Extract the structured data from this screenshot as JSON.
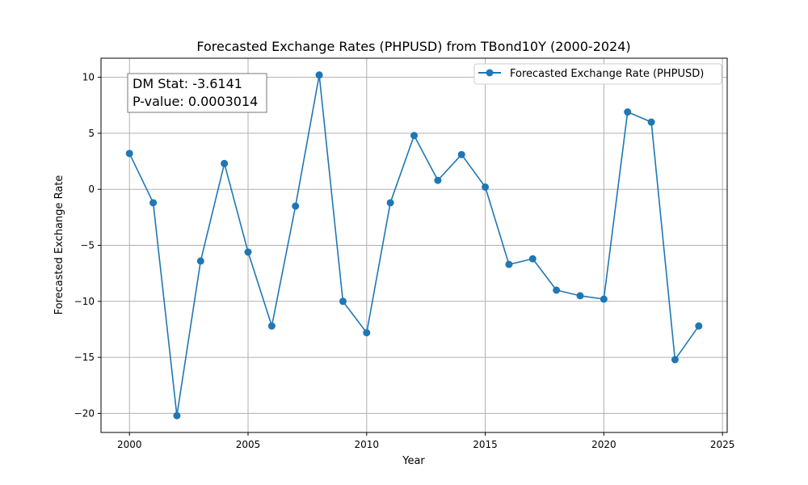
{
  "chart_data": {
    "type": "line",
    "title": "Forecasted Exchange Rates (PHPUSD) from TBond10Y (2000-2024)",
    "xlabel": "Year",
    "ylabel": "Forecasted Exchange Rate",
    "xlim": [
      1998.8,
      2025.2
    ],
    "ylim": [
      -21.7,
      11.7
    ],
    "xticks": [
      2000,
      2005,
      2010,
      2015,
      2020,
      2025
    ],
    "yticks": [
      -20,
      -15,
      -10,
      -5,
      0,
      5,
      10
    ],
    "grid": true,
    "legend_position": "top-right",
    "annotation": {
      "line1": "DM Stat: -3.6141",
      "line2": "P-value: 0.0003014",
      "position": "top-left"
    },
    "series": [
      {
        "name": "Forecasted Exchange Rate (PHPUSD)",
        "color": "#1f77b4",
        "marker": "circle",
        "x": [
          2000,
          2001,
          2002,
          2003,
          2004,
          2005,
          2006,
          2007,
          2008,
          2009,
          2010,
          2011,
          2012,
          2013,
          2014,
          2015,
          2016,
          2017,
          2018,
          2019,
          2020,
          2021,
          2022,
          2023,
          2024
        ],
        "y": [
          3.2,
          -1.2,
          -20.2,
          -6.4,
          2.3,
          -5.6,
          -12.2,
          -1.5,
          10.2,
          -10.0,
          -12.8,
          -1.2,
          4.8,
          0.8,
          3.1,
          0.2,
          -6.7,
          -6.2,
          -9.0,
          -9.5,
          -9.8,
          6.9,
          6.0,
          -15.2,
          -12.2
        ]
      }
    ]
  }
}
